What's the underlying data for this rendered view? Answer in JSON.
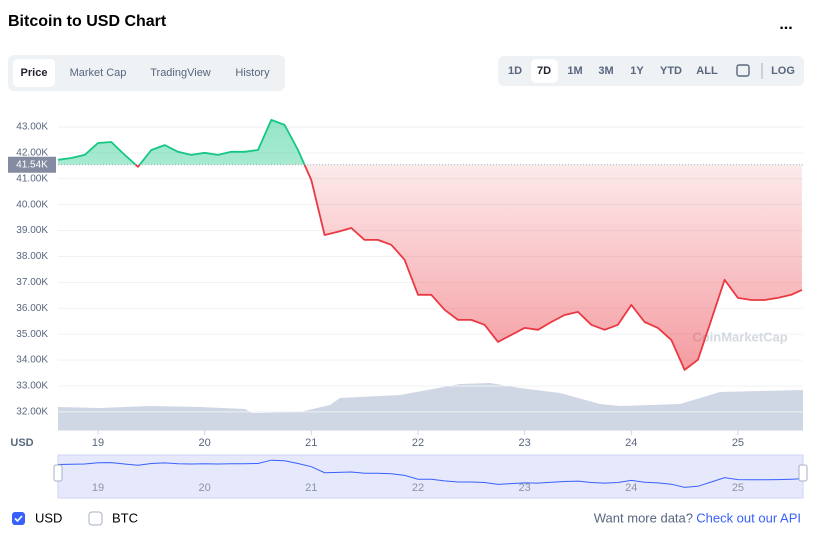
{
  "header": {
    "title": "Bitcoin to USD Chart",
    "menu": "..."
  },
  "tabs": [
    "Price",
    "Market Cap",
    "TradingView",
    "History"
  ],
  "ranges": [
    "1D",
    "7D",
    "1M",
    "3M",
    "1Y",
    "YTD",
    "ALL"
  ],
  "log_button": "LOG",
  "watermark": "CoinMarketCap",
  "footer": {
    "currencies": [
      "USD",
      "BTC"
    ],
    "prompt": "Want more data?",
    "link": "Check out our API"
  },
  "chart_data": {
    "type": "line",
    "x_label": "USD",
    "x": [
      18.625,
      18.75,
      18.875,
      19,
      19.125,
      19.25,
      19.375,
      19.5,
      19.625,
      19.75,
      19.875,
      20,
      20.125,
      20.25,
      20.375,
      20.5,
      20.625,
      20.75,
      20.875,
      21,
      21.125,
      21.25,
      21.375,
      21.5,
      21.625,
      21.75,
      21.875,
      22,
      22.125,
      22.25,
      22.375,
      22.5,
      22.625,
      22.75,
      22.875,
      23,
      23.125,
      23.25,
      23.375,
      23.5,
      23.625,
      23.75,
      23.875,
      24,
      24.125,
      24.25,
      24.375,
      24.5,
      24.625,
      24.75,
      24.875,
      25,
      25.125,
      25.25,
      25.375,
      25.5,
      25.6
    ],
    "values": [
      41730,
      41800,
      41920,
      42380,
      42420,
      41920,
      41460,
      42110,
      42300,
      42040,
      41920,
      42000,
      41920,
      42040,
      42040,
      42110,
      43270,
      43080,
      42110,
      40950,
      38830,
      38950,
      39100,
      38640,
      38640,
      38450,
      37870,
      36520,
      36520,
      35940,
      35550,
      35550,
      35360,
      34700,
      34970,
      35240,
      35170,
      35470,
      35740,
      35860,
      35360,
      35170,
      35360,
      36130,
      35470,
      35240,
      34780,
      33620,
      34010,
      35550,
      37100,
      36400,
      36320,
      36320,
      36400,
      36520,
      36710
    ],
    "up_color": "#16c784",
    "down_color": "#ea3943",
    "current_price": {
      "value": 41540,
      "label": "41.54K"
    },
    "xlim": [
      18.625,
      25.61
    ],
    "xticks": [
      19,
      20,
      21,
      22,
      23,
      24,
      25
    ],
    "ylim": [
      31300,
      44040
    ],
    "yticks": [
      {
        "value": 32000,
        "label": "32.00K"
      },
      {
        "value": 33000,
        "label": "33.00K"
      },
      {
        "value": 34000,
        "label": "34.00K"
      },
      {
        "value": 35000,
        "label": "35.00K"
      },
      {
        "value": 36000,
        "label": "36.00K"
      },
      {
        "value": 37000,
        "label": "37.00K"
      },
      {
        "value": 38000,
        "label": "38.00K"
      },
      {
        "value": 39000,
        "label": "39.00K"
      },
      {
        "value": 40000,
        "label": "40.00K"
      },
      {
        "value": 41000,
        "label": "41.00K"
      },
      {
        "value": 42000,
        "label": "42.00K"
      },
      {
        "value": 43000,
        "label": "43.00K"
      }
    ],
    "grid": true
  }
}
